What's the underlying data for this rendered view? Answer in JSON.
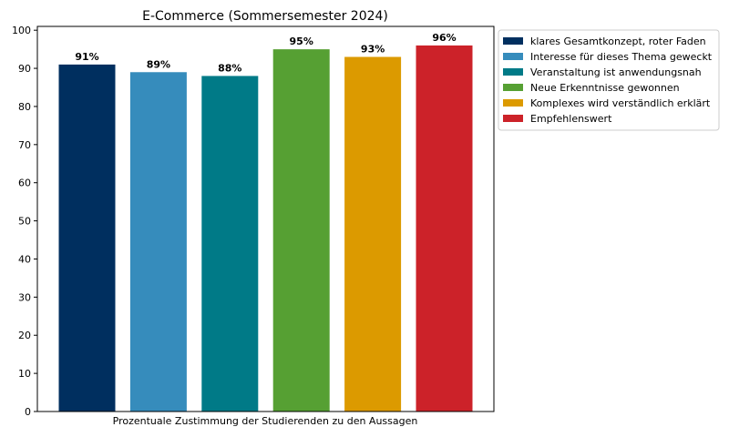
{
  "chart_data": {
    "type": "bar",
    "title": "E-Commerce (Sommersemester 2024)",
    "xlabel": "Prozentuale Zustimmung der Studierenden zu den Aussagen",
    "ylabel": "",
    "ylim": [
      0,
      101
    ],
    "yticks": [
      0,
      10,
      20,
      30,
      40,
      50,
      60,
      70,
      80,
      90,
      100
    ],
    "grid": false,
    "legend_position": "outside-right-top",
    "series": [
      {
        "name": "klares Gesamtkonzept, roter Faden",
        "value": 91,
        "label": "91%",
        "color": "#002f5f"
      },
      {
        "name": "Interesse für dieses Thema geweckt",
        "value": 89,
        "label": "89%",
        "color": "#368cbc"
      },
      {
        "name": "Veranstaltung ist anwendungsnah",
        "value": 88,
        "label": "88%",
        "color": "#007a87"
      },
      {
        "name": "Neue Erkenntnisse gewonnen",
        "value": 95,
        "label": "95%",
        "color": "#56a033"
      },
      {
        "name": "Komplexes wird verständlich erklärt",
        "value": 93,
        "label": "93%",
        "color": "#dc9a00"
      },
      {
        "name": "Empfehlenswert",
        "value": 96,
        "label": "96%",
        "color": "#cc2229"
      }
    ]
  }
}
